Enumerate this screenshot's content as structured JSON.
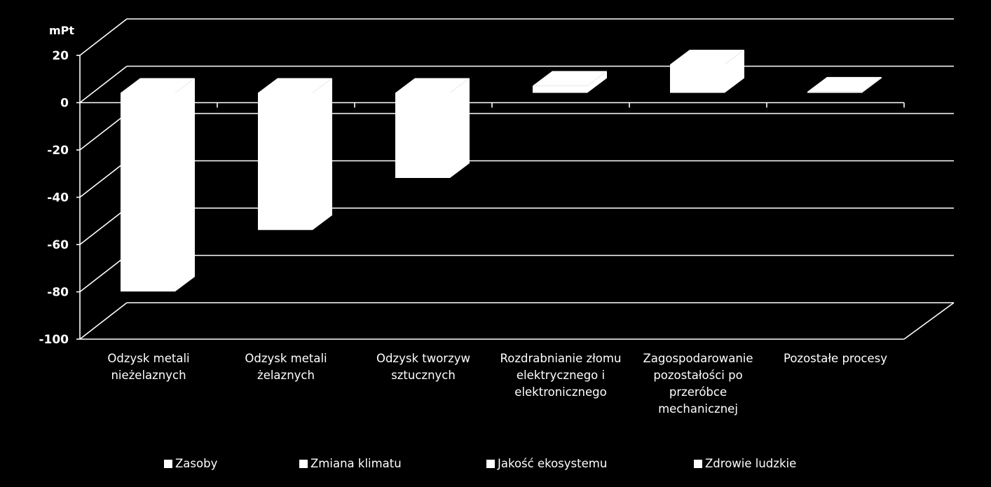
{
  "chart_data": {
    "type": "bar",
    "unit_label": "mPt",
    "categories": [
      "Odzysk metali nieżelaznych",
      "Odzysk metali żelaznych",
      "Odzysk tworzyw sztucznych",
      "Rozdrabnianie złomu elektrycznego i elektronicznego",
      "Zagospodarowanie pozostałości po przeróbce mechanicznej",
      "Pozostałe procesy"
    ],
    "series": [
      {
        "name": "Zasoby",
        "values": [
          -84,
          -58,
          -36,
          3,
          12,
          0.5
        ]
      },
      {
        "name": "Zmiana klimatu",
        "values": [
          null,
          null,
          null,
          null,
          null,
          null
        ]
      },
      {
        "name": "Jakość ekosystemu",
        "values": [
          null,
          null,
          null,
          null,
          null,
          null
        ]
      },
      {
        "name": "Zdrowie ludzkie",
        "values": [
          null,
          null,
          null,
          null,
          null,
          null
        ]
      }
    ],
    "ylim": [
      -100,
      20
    ],
    "yticks": [
      20,
      0,
      -20,
      -40,
      -60,
      -80,
      -100
    ],
    "ytick_labels": [
      "20",
      "0",
      "-20",
      "-40",
      "-60",
      "-80",
      "-100"
    ],
    "grid": true,
    "legend_position": "bottom",
    "colors": {
      "background": "#000000",
      "bars": "#ffffff",
      "grid": "#ffffff"
    }
  }
}
